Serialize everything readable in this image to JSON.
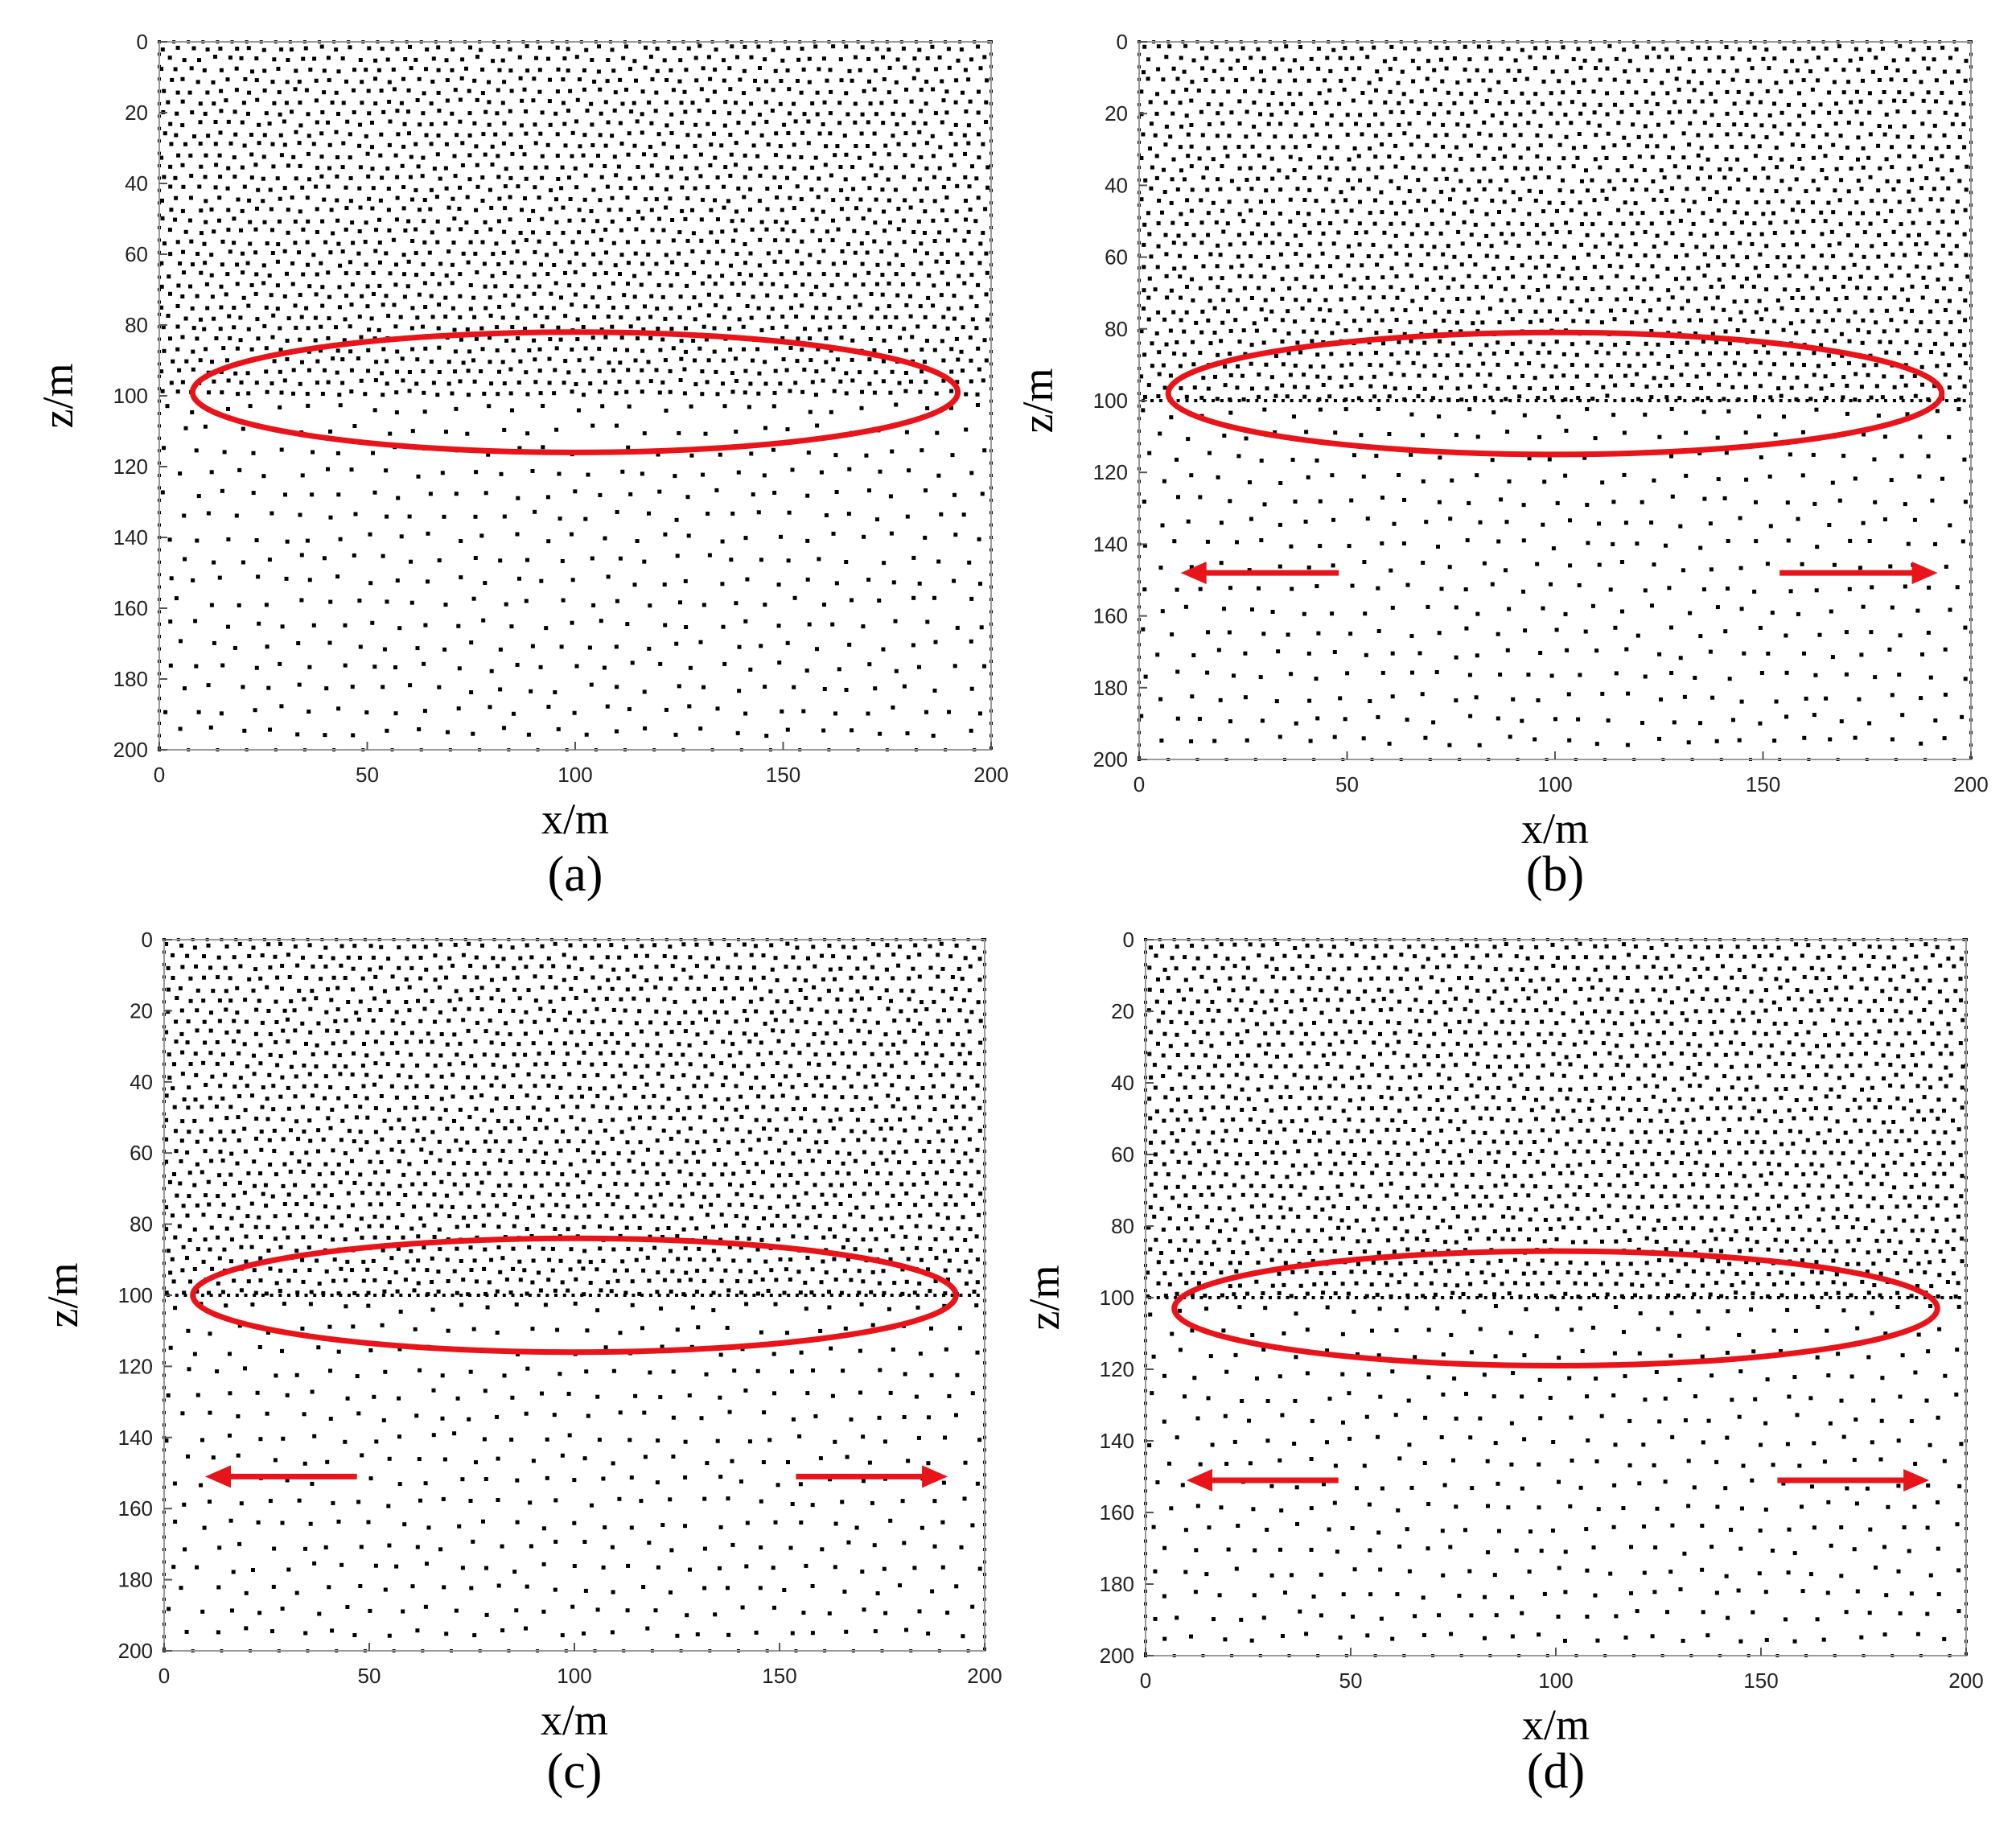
{
  "figure": {
    "layer_boundary_z": 100,
    "colors": {
      "points": "#000000",
      "annotation": "#e8141a",
      "axes": "#9a9a9a"
    }
  },
  "chart_data": [
    {
      "type": "scatter",
      "panel_label": "(a)",
      "xlabel": "x/m",
      "ylabel": "z/m",
      "xlim": [
        0,
        200
      ],
      "ylim": [
        200,
        0
      ],
      "x_ticks": [
        "0",
        "50",
        "100",
        "150",
        "200"
      ],
      "y_ticks": [
        "0",
        "20",
        "40",
        "60",
        "80",
        "100",
        "120",
        "140",
        "160",
        "180",
        "200"
      ],
      "point_spacing": {
        "upper_layer": 3.5,
        "lower_layer": 7,
        "boundary_row": false
      },
      "annotations": {
        "ellipse": {
          "cx": 100,
          "cz": 99,
          "rx": 92,
          "rz": 17
        },
        "arrows": []
      }
    },
    {
      "type": "scatter",
      "panel_label": "(b)",
      "xlabel": "x/m",
      "ylabel": "z/m",
      "xlim": [
        0,
        200
      ],
      "ylim": [
        200,
        0
      ],
      "x_ticks": [
        "0",
        "50",
        "100",
        "150",
        "200"
      ],
      "y_ticks": [
        "0",
        "20",
        "40",
        "60",
        "80",
        "100",
        "120",
        "140",
        "160",
        "180",
        "200"
      ],
      "point_spacing": {
        "upper_layer": 3.5,
        "lower_layer": 7,
        "boundary_row": true
      },
      "annotations": {
        "ellipse": {
          "cx": 100,
          "cz": 98,
          "rx": 93,
          "rz": 17
        },
        "arrows": [
          {
            "from_x": 48,
            "to_x": 10,
            "z": 148
          },
          {
            "from_x": 154,
            "to_x": 192,
            "z": 148
          }
        ]
      }
    },
    {
      "type": "scatter",
      "panel_label": "(c)",
      "xlabel": "x/m",
      "ylabel": "z/m",
      "xlim": [
        0,
        200
      ],
      "ylim": [
        200,
        0
      ],
      "x_ticks": [
        "0",
        "50",
        "100",
        "150",
        "200"
      ],
      "y_ticks": [
        "0",
        "20",
        "40",
        "60",
        "80",
        "100",
        "120",
        "140",
        "160",
        "180",
        "200"
      ],
      "point_spacing": {
        "upper_layer": 3.5,
        "lower_layer": 7,
        "boundary_row": true
      },
      "annotations": {
        "ellipse": {
          "cx": 100,
          "cz": 100,
          "rx": 93,
          "rz": 16
        },
        "arrows": [
          {
            "from_x": 47,
            "to_x": 10,
            "z": 151
          },
          {
            "from_x": 154,
            "to_x": 191,
            "z": 151
          }
        ]
      }
    },
    {
      "type": "scatter",
      "panel_label": "(d)",
      "xlabel": "x/m",
      "ylabel": "z/m",
      "xlim": [
        0,
        200
      ],
      "ylim": [
        200,
        0
      ],
      "x_ticks": [
        "0",
        "50",
        "100",
        "150",
        "200"
      ],
      "y_ticks": [
        "0",
        "20",
        "40",
        "60",
        "80",
        "100",
        "120",
        "140",
        "160",
        "180",
        "200"
      ],
      "point_spacing": {
        "upper_layer": 3.5,
        "lower_layer": 7,
        "boundary_row": true
      },
      "annotations": {
        "ellipse": {
          "cx": 100,
          "cz": 103,
          "rx": 93,
          "rz": 16
        },
        "arrows": [
          {
            "from_x": 47,
            "to_x": 10,
            "z": 151
          },
          {
            "from_x": 154,
            "to_x": 191,
            "z": 151
          }
        ]
      }
    }
  ]
}
